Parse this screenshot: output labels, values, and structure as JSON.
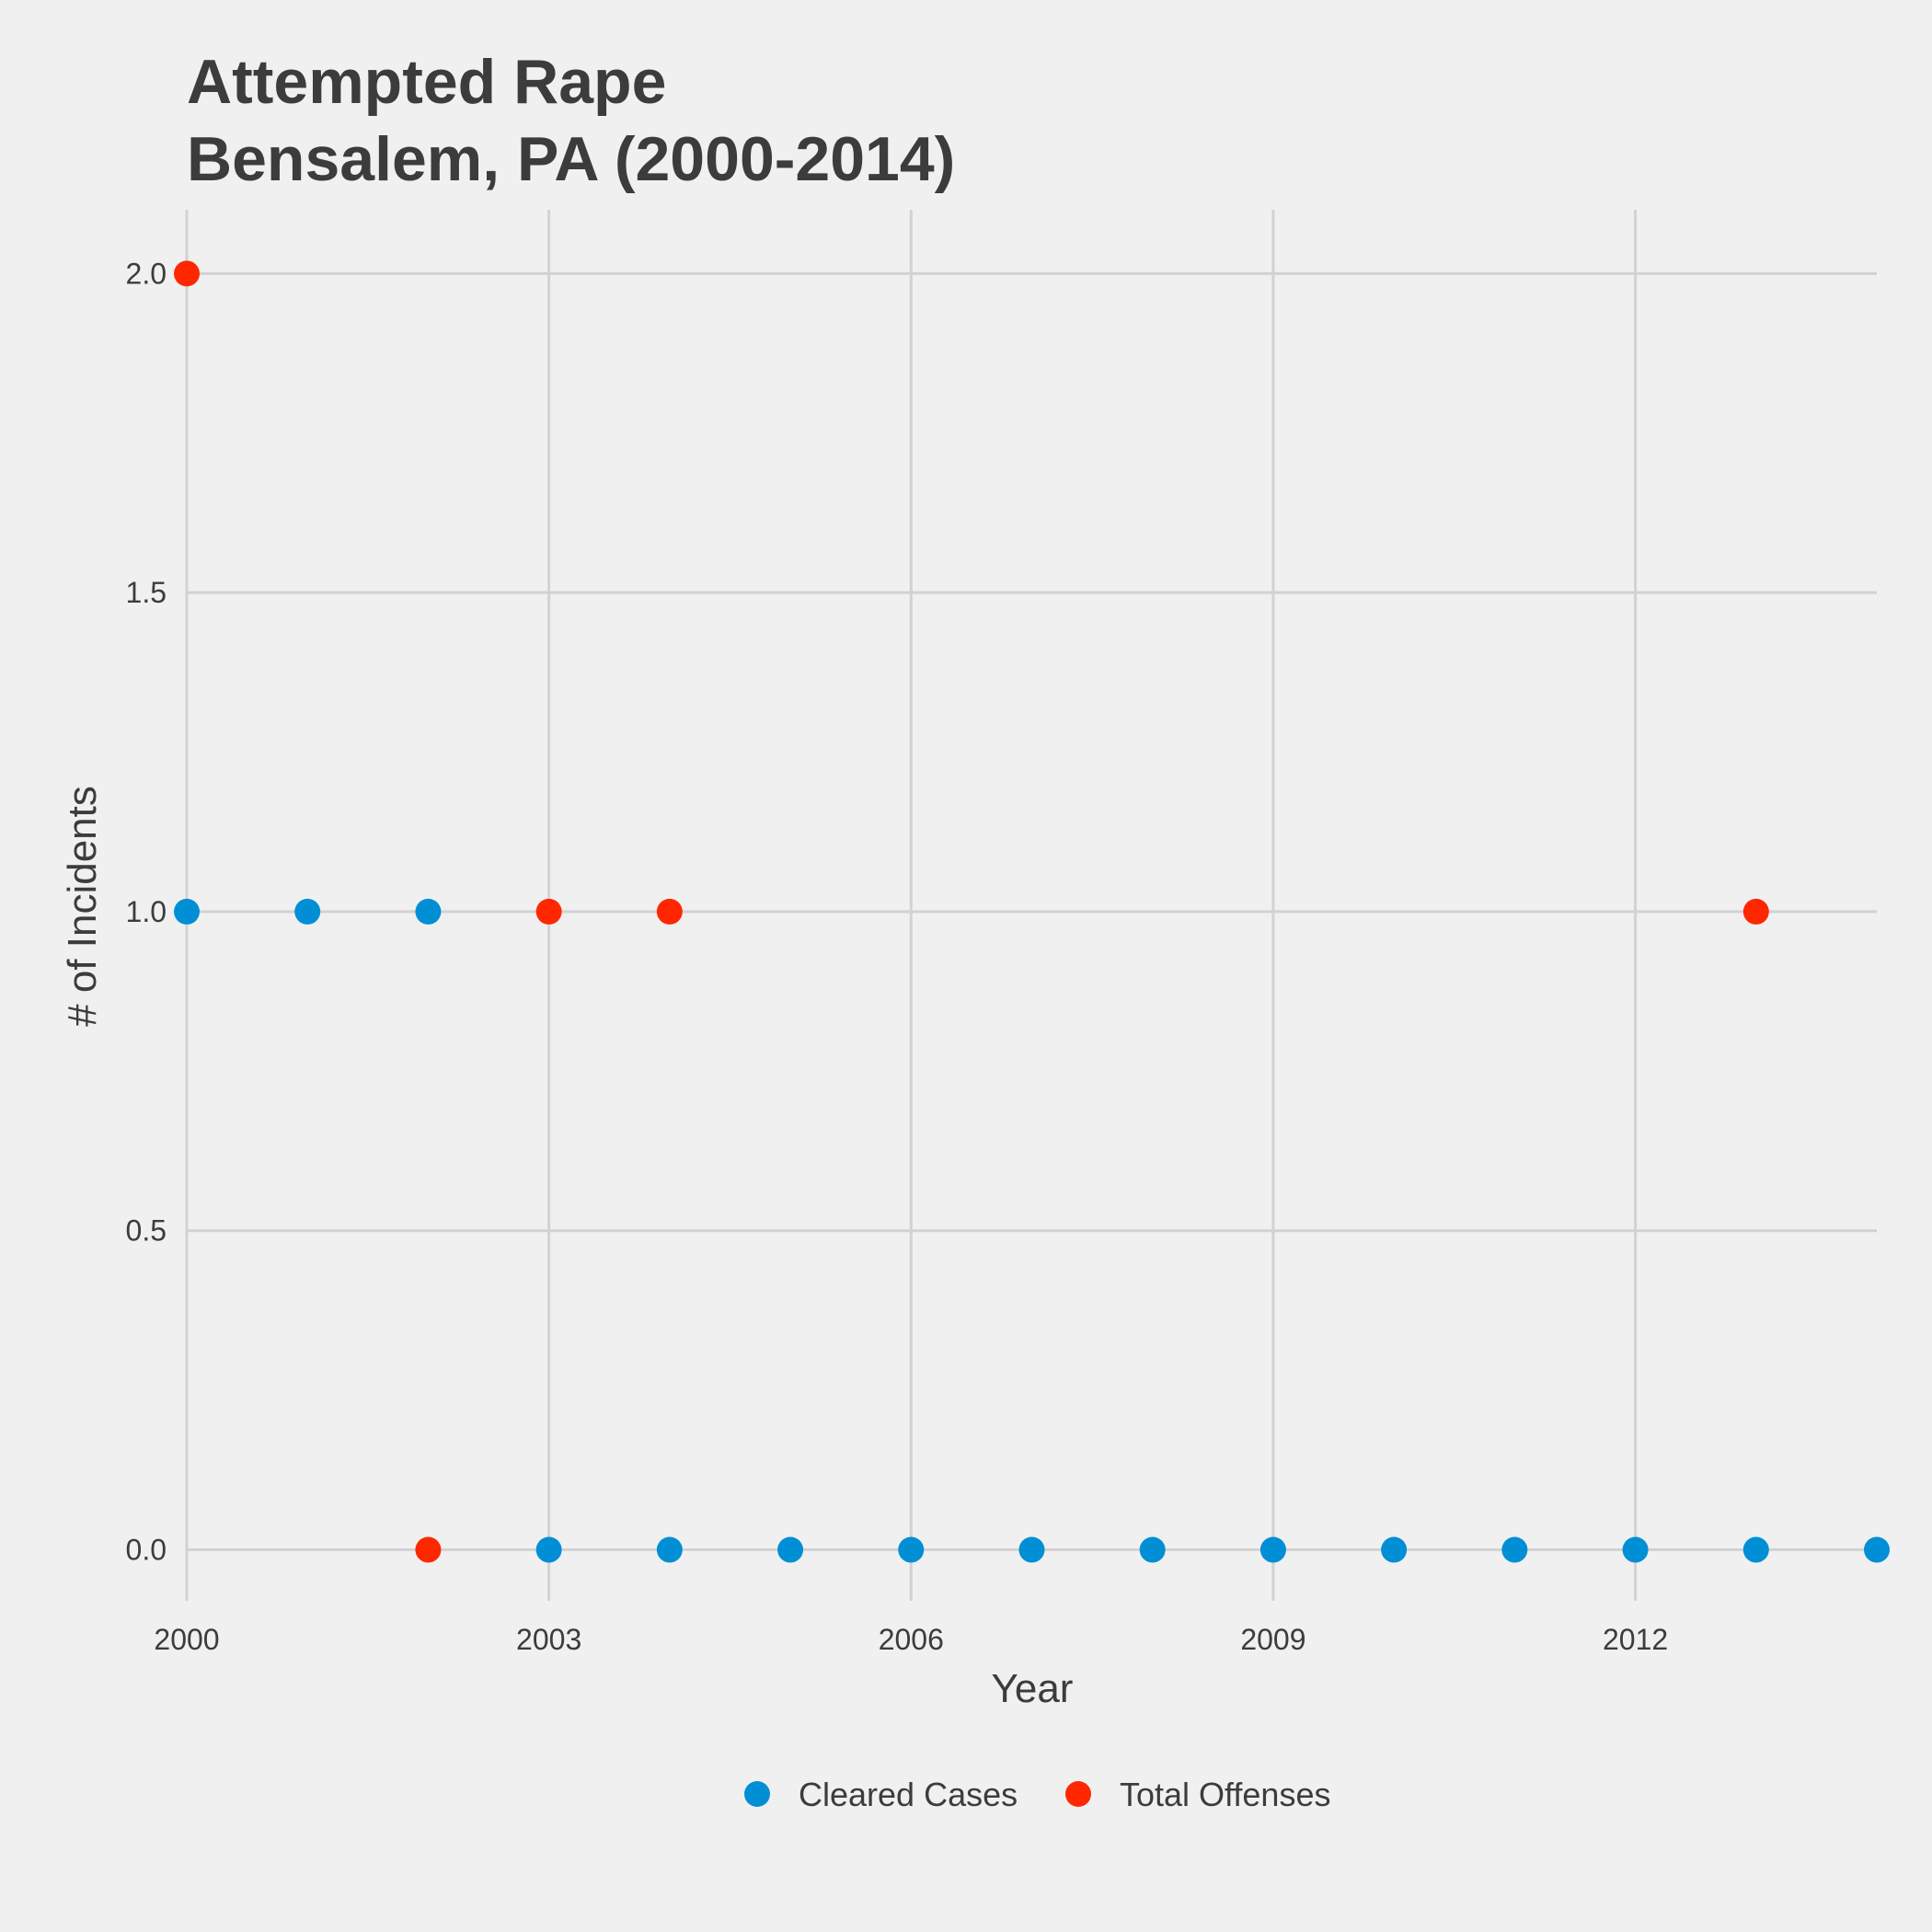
{
  "chart_data": {
    "type": "scatter",
    "title_lines": [
      "Attempted Rape",
      "Bensalem, PA (2000-2014)"
    ],
    "xlabel": "Year",
    "ylabel": "# of Incidents",
    "xlim": [
      2000,
      2014
    ],
    "ylim": [
      -0.08,
      2.1
    ],
    "x_ticks": [
      2000,
      2003,
      2006,
      2009,
      2012
    ],
    "x_tick_labels": [
      "2000",
      "2003",
      "2006",
      "2009",
      "2012"
    ],
    "y_ticks": [
      0.0,
      0.5,
      1.0,
      1.5,
      2.0
    ],
    "y_tick_labels": [
      "0.0",
      "0.5",
      "1.0",
      "1.5",
      "2.0"
    ],
    "grid": true,
    "legend_position": "bottom",
    "series": [
      {
        "name": "Cleared Cases",
        "color": "#008FD5",
        "x": [
          2000,
          2001,
          2002,
          2003,
          2004,
          2005,
          2006,
          2007,
          2008,
          2009,
          2010,
          2011,
          2012,
          2013,
          2014
        ],
        "y": [
          1,
          1,
          1,
          0,
          0,
          0,
          0,
          0,
          0,
          0,
          0,
          0,
          0,
          0,
          0
        ]
      },
      {
        "name": "Total Offenses",
        "color": "#FF2700",
        "x": [
          2000,
          2002,
          2003,
          2004,
          2013
        ],
        "y": [
          2,
          0,
          1,
          1,
          1
        ]
      }
    ]
  }
}
